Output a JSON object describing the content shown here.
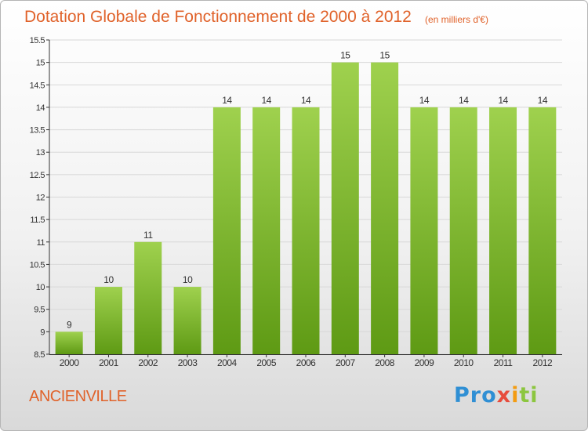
{
  "title": "Dotation Globale de Fonctionnement de 2000 à 2012",
  "unit_note": "(en milliers d'€)",
  "town": "ANCIENVILLE",
  "logo": {
    "text": "Proxiti",
    "colors": [
      "#2f8fd4",
      "#f39c12",
      "#8cc63f",
      "#e74c3c"
    ]
  },
  "colors": {
    "title": "#e0622a",
    "bar_top": "#9fd14e",
    "bar_bottom": "#5e9a14",
    "grid": "#d8d8d8",
    "axis": "#333333"
  },
  "chart_data": {
    "type": "bar",
    "categories": [
      "2000",
      "2001",
      "2002",
      "2003",
      "2004",
      "2005",
      "2006",
      "2007",
      "2008",
      "2009",
      "2010",
      "2011",
      "2012"
    ],
    "values": [
      9,
      10,
      11,
      10,
      14,
      14,
      14,
      15,
      15,
      14,
      14,
      14,
      14
    ],
    "data_labels": [
      "9",
      "10",
      "11",
      "10",
      "14",
      "14",
      "14",
      "15",
      "15",
      "14",
      "14",
      "14",
      "14"
    ],
    "ylim": [
      8.5,
      15.5
    ],
    "yticks": [
      "8.5",
      "9",
      "9.5",
      "10",
      "10.5",
      "11",
      "11.5",
      "12",
      "12.5",
      "13",
      "13.5",
      "14",
      "14.5",
      "15",
      "15.5"
    ],
    "grid": true,
    "legend": "none"
  }
}
